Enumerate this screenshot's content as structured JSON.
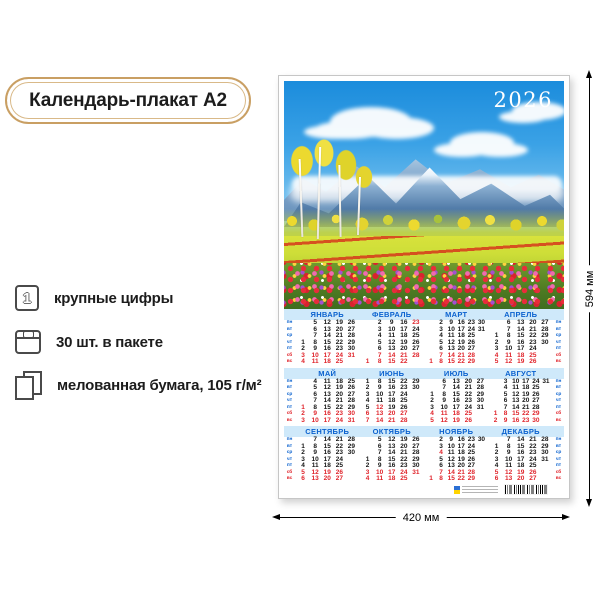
{
  "product": {
    "title": "Календарь-плакат А2",
    "features": [
      {
        "icon": "digit-1-icon",
        "label": "крупные цифры"
      },
      {
        "icon": "package-icon",
        "label": "30 шт. в пакете"
      },
      {
        "icon": "paper-sheets-icon",
        "label": "мелованная бумага, 105 г/м²"
      }
    ]
  },
  "dimensions": {
    "height_label": "594 мм",
    "width_label": "420 мм"
  },
  "colors": {
    "accent_blue": "#0b62cf",
    "weekend_red": "#e0232a",
    "header_band": "#cfe9fa",
    "gold_border": "#c99f63"
  },
  "calendar": {
    "year": "2026",
    "weekday_labels": [
      "пн",
      "вт",
      "ср",
      "чт",
      "пт",
      "сб",
      "вс"
    ],
    "months": [
      {
        "key": "january",
        "name": "ЯНВАРЬ",
        "holidays": [],
        "rows": [
          [
            "",
            "5",
            "12",
            "19",
            "26"
          ],
          [
            "",
            "6",
            "13",
            "20",
            "27"
          ],
          [
            "",
            "7",
            "14",
            "21",
            "28"
          ],
          [
            "1",
            "8",
            "15",
            "22",
            "29"
          ],
          [
            "2",
            "9",
            "16",
            "23",
            "30"
          ],
          [
            "3",
            "10",
            "17",
            "24",
            "31"
          ],
          [
            "4",
            "11",
            "18",
            "25",
            ""
          ]
        ]
      },
      {
        "key": "february",
        "name": "ФЕВРАЛЬ",
        "holidays": [
          "23"
        ],
        "rows": [
          [
            "",
            "2",
            "9",
            "16",
            "23"
          ],
          [
            "",
            "3",
            "10",
            "17",
            "24"
          ],
          [
            "",
            "4",
            "11",
            "18",
            "25"
          ],
          [
            "",
            "5",
            "12",
            "19",
            "26"
          ],
          [
            "",
            "6",
            "13",
            "20",
            "27"
          ],
          [
            "",
            "7",
            "14",
            "21",
            "28"
          ],
          [
            "1",
            "8",
            "15",
            "22",
            ""
          ]
        ]
      },
      {
        "key": "march",
        "name": "МАРТ",
        "holidays": [],
        "rows": [
          [
            "",
            "2",
            "9",
            "16",
            "23",
            "30"
          ],
          [
            "",
            "3",
            "10",
            "17",
            "24",
            "31"
          ],
          [
            "",
            "4",
            "11",
            "18",
            "25",
            ""
          ],
          [
            "",
            "5",
            "12",
            "19",
            "26",
            ""
          ],
          [
            "",
            "6",
            "13",
            "20",
            "27",
            ""
          ],
          [
            "",
            "7",
            "14",
            "21",
            "28",
            ""
          ],
          [
            "1",
            "8",
            "15",
            "22",
            "29",
            ""
          ]
        ]
      },
      {
        "key": "april",
        "name": "АПРЕЛЬ",
        "holidays": [],
        "rows": [
          [
            "",
            "6",
            "13",
            "20",
            "27"
          ],
          [
            "",
            "7",
            "14",
            "21",
            "28"
          ],
          [
            "1",
            "8",
            "15",
            "22",
            "29"
          ],
          [
            "2",
            "9",
            "16",
            "23",
            "30"
          ],
          [
            "3",
            "10",
            "17",
            "24",
            ""
          ],
          [
            "4",
            "11",
            "18",
            "25",
            ""
          ],
          [
            "5",
            "12",
            "19",
            "26",
            ""
          ]
        ]
      },
      {
        "key": "may",
        "name": "МАЙ",
        "holidays": [
          "1"
        ],
        "rows": [
          [
            "",
            "4",
            "11",
            "18",
            "25"
          ],
          [
            "",
            "5",
            "12",
            "19",
            "26"
          ],
          [
            "",
            "6",
            "13",
            "20",
            "27"
          ],
          [
            "",
            "7",
            "14",
            "21",
            "28"
          ],
          [
            "1",
            "8",
            "15",
            "22",
            "29"
          ],
          [
            "2",
            "9",
            "16",
            "23",
            "30"
          ],
          [
            "3",
            "10",
            "17",
            "24",
            "31"
          ]
        ]
      },
      {
        "key": "june",
        "name": "ИЮНЬ",
        "holidays": [
          "12"
        ],
        "rows": [
          [
            "1",
            "8",
            "15",
            "22",
            "29"
          ],
          [
            "2",
            "9",
            "16",
            "23",
            "30"
          ],
          [
            "3",
            "10",
            "17",
            "24",
            ""
          ],
          [
            "4",
            "11",
            "18",
            "25",
            ""
          ],
          [
            "5",
            "12",
            "19",
            "26",
            ""
          ],
          [
            "6",
            "13",
            "20",
            "27",
            ""
          ],
          [
            "7",
            "14",
            "21",
            "28",
            ""
          ]
        ]
      },
      {
        "key": "july",
        "name": "ИЮЛЬ",
        "holidays": [],
        "rows": [
          [
            "",
            "6",
            "13",
            "20",
            "27"
          ],
          [
            "",
            "7",
            "14",
            "21",
            "28"
          ],
          [
            "1",
            "8",
            "15",
            "22",
            "29"
          ],
          [
            "2",
            "9",
            "16",
            "23",
            "30"
          ],
          [
            "3",
            "10",
            "17",
            "24",
            "31"
          ],
          [
            "4",
            "11",
            "18",
            "25",
            ""
          ],
          [
            "5",
            "12",
            "19",
            "26",
            ""
          ]
        ]
      },
      {
        "key": "august",
        "name": "АВГУСТ",
        "holidays": [],
        "rows": [
          [
            "",
            "3",
            "10",
            "17",
            "24",
            "31"
          ],
          [
            "",
            "4",
            "11",
            "18",
            "25",
            ""
          ],
          [
            "",
            "5",
            "12",
            "19",
            "26",
            ""
          ],
          [
            "",
            "6",
            "13",
            "20",
            "27",
            ""
          ],
          [
            "",
            "7",
            "14",
            "21",
            "28",
            ""
          ],
          [
            "1",
            "8",
            "15",
            "22",
            "29",
            ""
          ],
          [
            "2",
            "9",
            "16",
            "23",
            "30",
            ""
          ]
        ]
      },
      {
        "key": "september",
        "name": "СЕНТЯБРЬ",
        "holidays": [],
        "rows": [
          [
            "",
            "7",
            "14",
            "21",
            "28"
          ],
          [
            "1",
            "8",
            "15",
            "22",
            "29"
          ],
          [
            "2",
            "9",
            "16",
            "23",
            "30"
          ],
          [
            "3",
            "10",
            "17",
            "24",
            ""
          ],
          [
            "4",
            "11",
            "18",
            "25",
            ""
          ],
          [
            "5",
            "12",
            "19",
            "26",
            ""
          ],
          [
            "6",
            "13",
            "20",
            "27",
            ""
          ]
        ]
      },
      {
        "key": "october",
        "name": "ОКТЯБРЬ",
        "holidays": [],
        "rows": [
          [
            "",
            "5",
            "12",
            "19",
            "26"
          ],
          [
            "",
            "6",
            "13",
            "20",
            "27"
          ],
          [
            "",
            "7",
            "14",
            "21",
            "28"
          ],
          [
            "1",
            "8",
            "15",
            "22",
            "29"
          ],
          [
            "2",
            "9",
            "16",
            "23",
            "30"
          ],
          [
            "3",
            "10",
            "17",
            "24",
            "31"
          ],
          [
            "4",
            "11",
            "18",
            "25",
            ""
          ]
        ]
      },
      {
        "key": "november",
        "name": "НОЯБРЬ",
        "holidays": [
          "4"
        ],
        "rows": [
          [
            "",
            "2",
            "9",
            "16",
            "23",
            "30"
          ],
          [
            "",
            "3",
            "10",
            "17",
            "24",
            ""
          ],
          [
            "",
            "4",
            "11",
            "18",
            "25",
            ""
          ],
          [
            "",
            "5",
            "12",
            "19",
            "26",
            ""
          ],
          [
            "",
            "6",
            "13",
            "20",
            "27",
            ""
          ],
          [
            "",
            "7",
            "14",
            "21",
            "28",
            ""
          ],
          [
            "1",
            "8",
            "15",
            "22",
            "29",
            ""
          ]
        ]
      },
      {
        "key": "december",
        "name": "ДЕКАБРЬ",
        "holidays": [],
        "rows": [
          [
            "",
            "7",
            "14",
            "21",
            "28"
          ],
          [
            "1",
            "8",
            "15",
            "22",
            "29"
          ],
          [
            "2",
            "9",
            "16",
            "23",
            "30"
          ],
          [
            "3",
            "10",
            "17",
            "24",
            "31"
          ],
          [
            "4",
            "11",
            "18",
            "25",
            ""
          ],
          [
            "5",
            "12",
            "19",
            "26",
            ""
          ],
          [
            "6",
            "13",
            "20",
            "27",
            ""
          ]
        ]
      }
    ]
  }
}
